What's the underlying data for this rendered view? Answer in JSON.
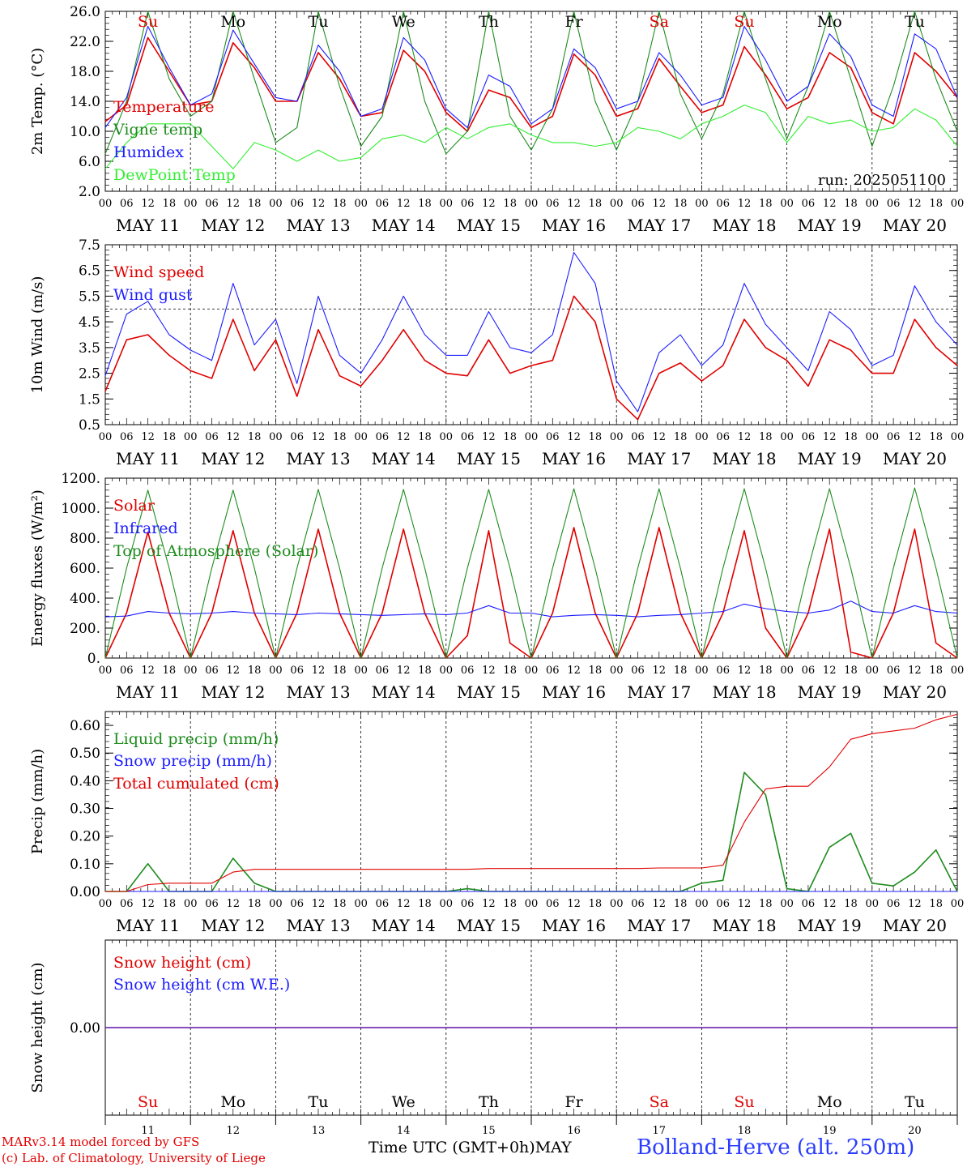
{
  "footer": {
    "model_line": "MARv3.14 model forced by GFS",
    "lab_line": "(c) Lab. of Climatology, University of Liege",
    "xlabel": "Time UTC (GMT+0h)",
    "month": "MAY",
    "station": "Bolland-Herve (alt. 250m)"
  },
  "run_label": "run: 2025051100",
  "days": [
    "MAY 11",
    "MAY 12",
    "MAY 13",
    "MAY 14",
    "MAY 15",
    "MAY 16",
    "MAY 17",
    "MAY 18",
    "MAY 19",
    "MAY 20"
  ],
  "weekdays": [
    {
      "label": "Su",
      "color": "#e00000"
    },
    {
      "label": "Mo",
      "color": "#000000"
    },
    {
      "label": "Tu",
      "color": "#000000"
    },
    {
      "label": "We",
      "color": "#000000"
    },
    {
      "label": "Th",
      "color": "#000000"
    },
    {
      "label": "Fr",
      "color": "#000000"
    },
    {
      "label": "Sa",
      "color": "#e00000"
    },
    {
      "label": "Su",
      "color": "#e00000"
    },
    {
      "label": "Mo",
      "color": "#000000"
    },
    {
      "label": "Tu",
      "color": "#000000"
    }
  ],
  "day_numbers": [
    "11",
    "12",
    "13",
    "14",
    "15",
    "16",
    "17",
    "18",
    "19",
    "20"
  ],
  "hour_ticks": [
    "00",
    "06",
    "12",
    "18"
  ],
  "colors": {
    "red": "#e00000",
    "green": "#1e8c1e",
    "blue": "#1c1cff",
    "lightgreen": "#33ee33"
  },
  "chart_data": [
    {
      "type": "line",
      "panel": "temperature",
      "ylabel": "2m Temp. (°C)",
      "ylim": [
        2,
        26
      ],
      "yticks": [
        "2.0",
        "6.0",
        "10.0",
        "14.0",
        "18.0",
        "22.0",
        "26.0"
      ],
      "x_unit": "hours since 2025-05-11 00 UTC",
      "x": [
        0,
        6,
        12,
        18,
        24,
        30,
        36,
        42,
        48,
        54,
        60,
        66,
        72,
        78,
        84,
        90,
        96,
        102,
        108,
        114,
        120,
        126,
        132,
        138,
        144,
        150,
        156,
        162,
        168,
        174,
        180,
        186,
        192,
        198,
        204,
        210,
        216,
        222,
        228,
        234,
        240
      ],
      "series": [
        {
          "name": "Temperature",
          "color": "#e00000",
          "values": [
            11.3,
            13.5,
            22.5,
            18.0,
            13.5,
            14.0,
            21.8,
            18.5,
            14.0,
            14.0,
            20.5,
            17.0,
            12.0,
            12.5,
            20.8,
            18.0,
            12.5,
            10.0,
            15.5,
            14.5,
            10.5,
            12.0,
            20.3,
            17.5,
            12.0,
            13.0,
            19.7,
            16.0,
            12.5,
            13.5,
            21.3,
            17.5,
            13.0,
            14.5,
            20.5,
            18.5,
            12.5,
            11.0,
            20.5,
            18.0,
            14.5
          ]
        },
        {
          "name": "Vigne temp",
          "color": "#1e8c1e",
          "values": [
            7.0,
            14.0,
            26.0,
            17.0,
            12.0,
            14.0,
            26.0,
            17.0,
            8.5,
            10.5,
            26.0,
            16.0,
            8.0,
            12.0,
            26.0,
            14.0,
            7.0,
            10.0,
            26.0,
            12.0,
            7.5,
            13.0,
            26.0,
            14.0,
            7.5,
            14.0,
            26.0,
            15.0,
            9.0,
            15.0,
            26.0,
            17.0,
            9.0,
            16.0,
            26.0,
            17.0,
            8.0,
            16.0,
            26.0,
            17.0,
            10.0
          ]
        },
        {
          "name": "Humidex",
          "color": "#1c1cff",
          "values": [
            10.5,
            14.5,
            24.0,
            18.5,
            13.5,
            15.0,
            23.5,
            19.0,
            14.5,
            14.0,
            21.5,
            18.0,
            12.0,
            13.0,
            22.5,
            19.5,
            13.0,
            10.5,
            17.5,
            16.0,
            11.0,
            13.0,
            21.0,
            18.5,
            13.0,
            14.0,
            20.5,
            17.5,
            13.5,
            14.5,
            24.0,
            19.5,
            14.0,
            16.0,
            23.0,
            20.0,
            13.5,
            12.0,
            23.0,
            21.0,
            14.5
          ]
        },
        {
          "name": "DewPoint Temp",
          "color": "#33ee33",
          "values": [
            5.0,
            8.5,
            11.0,
            11.0,
            11.0,
            8.0,
            5.0,
            8.5,
            7.5,
            6.0,
            7.5,
            6.0,
            6.5,
            9.0,
            9.5,
            8.5,
            10.5,
            9.0,
            10.5,
            11.0,
            9.5,
            8.5,
            8.5,
            8.0,
            8.5,
            10.5,
            10.0,
            9.0,
            11.0,
            12.0,
            13.5,
            12.5,
            8.5,
            12.0,
            11.0,
            11.5,
            10.0,
            10.5,
            13.0,
            11.5,
            8.0
          ]
        }
      ]
    },
    {
      "type": "line",
      "panel": "wind",
      "ylabel": "10m Wind (m/s)",
      "ylim": [
        0.5,
        7.5
      ],
      "yticks": [
        "0.5",
        "1.5",
        "2.5",
        "3.5",
        "4.5",
        "5.5",
        "6.5",
        "7.5"
      ],
      "reference_line": 5.0,
      "x": [
        0,
        6,
        12,
        18,
        24,
        30,
        36,
        42,
        48,
        54,
        60,
        66,
        72,
        78,
        84,
        90,
        96,
        102,
        108,
        114,
        120,
        126,
        132,
        138,
        144,
        150,
        156,
        162,
        168,
        174,
        180,
        186,
        192,
        198,
        204,
        210,
        216,
        222,
        228,
        234,
        240
      ],
      "series": [
        {
          "name": "Wind speed",
          "color": "#e00000",
          "values": [
            1.8,
            3.8,
            4.0,
            3.2,
            2.6,
            2.3,
            4.6,
            2.6,
            3.8,
            1.6,
            4.2,
            2.4,
            2.0,
            3.0,
            4.2,
            3.0,
            2.5,
            2.4,
            3.8,
            2.5,
            2.8,
            3.0,
            5.5,
            4.5,
            1.5,
            0.7,
            2.5,
            2.9,
            2.2,
            2.8,
            4.6,
            3.5,
            3.0,
            2.0,
            3.8,
            3.4,
            2.5,
            2.5,
            4.6,
            3.5,
            2.8
          ]
        },
        {
          "name": "Wind gust",
          "color": "#1c1cff",
          "values": [
            2.4,
            4.8,
            5.3,
            4.0,
            3.4,
            3.0,
            6.0,
            3.6,
            4.6,
            2.1,
            5.5,
            3.2,
            2.5,
            3.8,
            5.5,
            4.0,
            3.2,
            3.2,
            4.9,
            3.5,
            3.3,
            4.0,
            7.2,
            6.0,
            2.2,
            1.0,
            3.3,
            4.0,
            2.8,
            3.6,
            6.0,
            4.4,
            3.5,
            2.6,
            4.9,
            4.2,
            2.8,
            3.2,
            5.9,
            4.5,
            3.6
          ]
        }
      ]
    },
    {
      "type": "line",
      "panel": "energy",
      "ylabel": "Energy fluxes (W/m²)",
      "ylim": [
        0,
        1200
      ],
      "yticks": [
        "0.",
        "200.",
        "400.",
        "600.",
        "800.",
        "1000.",
        "1200."
      ],
      "x": [
        0,
        6,
        12,
        18,
        24,
        30,
        36,
        42,
        48,
        54,
        60,
        66,
        72,
        78,
        84,
        90,
        96,
        102,
        108,
        114,
        120,
        126,
        132,
        138,
        144,
        150,
        156,
        162,
        168,
        174,
        180,
        186,
        192,
        198,
        204,
        210,
        216,
        222,
        228,
        234,
        240
      ],
      "series": [
        {
          "name": "Solar",
          "color": "#e00000",
          "values": [
            0,
            300,
            840,
            300,
            0,
            300,
            850,
            300,
            0,
            300,
            860,
            300,
            0,
            300,
            860,
            300,
            0,
            150,
            850,
            100,
            0,
            300,
            870,
            300,
            0,
            300,
            870,
            300,
            0,
            300,
            850,
            200,
            0,
            300,
            860,
            40,
            0,
            300,
            860,
            100,
            0
          ]
        },
        {
          "name": "Infrared",
          "color": "#1c1cff",
          "values": [
            275,
            280,
            310,
            300,
            295,
            300,
            310,
            300,
            295,
            290,
            300,
            295,
            290,
            285,
            290,
            295,
            290,
            300,
            350,
            300,
            300,
            275,
            285,
            290,
            285,
            275,
            285,
            290,
            300,
            310,
            360,
            330,
            310,
            300,
            320,
            380,
            310,
            300,
            350,
            310,
            300
          ]
        },
        {
          "name": "Top of Atmosphere (Solar)",
          "color": "#1e8c1e",
          "values": [
            0,
            600,
            1120,
            600,
            0,
            600,
            1120,
            600,
            0,
            600,
            1125,
            600,
            0,
            600,
            1125,
            600,
            0,
            600,
            1125,
            600,
            0,
            600,
            1130,
            600,
            0,
            600,
            1130,
            600,
            0,
            600,
            1130,
            600,
            0,
            600,
            1130,
            600,
            0,
            600,
            1135,
            600,
            0
          ]
        }
      ]
    },
    {
      "type": "line",
      "panel": "precip",
      "ylabel": "Precip (mm/h)",
      "ylim": [
        0,
        0.65
      ],
      "yticks": [
        "0.00",
        "0.10",
        "0.20",
        "0.30",
        "0.40",
        "0.50",
        "0.60"
      ],
      "x": [
        0,
        6,
        12,
        18,
        24,
        30,
        36,
        42,
        48,
        54,
        60,
        66,
        72,
        78,
        84,
        90,
        96,
        102,
        108,
        114,
        120,
        126,
        132,
        138,
        144,
        150,
        156,
        162,
        168,
        174,
        180,
        186,
        192,
        198,
        204,
        210,
        216,
        222,
        228,
        234,
        240
      ],
      "series": [
        {
          "name": "Liquid precip (mm/h)",
          "color": "#1e8c1e",
          "values": [
            0,
            0,
            0.1,
            0,
            0,
            0,
            0.12,
            0.03,
            0,
            0,
            0,
            0,
            0,
            0,
            0,
            0,
            0,
            0.01,
            0,
            0,
            0,
            0,
            0,
            0,
            0,
            0,
            0,
            0,
            0.03,
            0.04,
            0.43,
            0.35,
            0.01,
            0,
            0.16,
            0.21,
            0.03,
            0.02,
            0.07,
            0.15,
            0
          ]
        },
        {
          "name": "Snow precip (mm/h)",
          "color": "#1c1cff",
          "values": [
            0,
            0,
            0,
            0,
            0,
            0,
            0,
            0,
            0,
            0,
            0,
            0,
            0,
            0,
            0,
            0,
            0,
            0,
            0,
            0,
            0,
            0,
            0,
            0,
            0,
            0,
            0,
            0,
            0,
            0,
            0,
            0,
            0,
            0,
            0,
            0,
            0,
            0,
            0,
            0,
            0
          ]
        },
        {
          "name": "Total cumulated (cm)",
          "color": "#e00000",
          "values": [
            0,
            0,
            0.025,
            0.03,
            0.03,
            0.03,
            0.07,
            0.08,
            0.08,
            0.08,
            0.08,
            0.08,
            0.08,
            0.08,
            0.08,
            0.08,
            0.08,
            0.08,
            0.083,
            0.083,
            0.083,
            0.083,
            0.083,
            0.083,
            0.083,
            0.083,
            0.085,
            0.085,
            0.085,
            0.095,
            0.25,
            0.37,
            0.38,
            0.38,
            0.45,
            0.55,
            0.57,
            0.58,
            0.59,
            0.62,
            0.64
          ]
        }
      ]
    },
    {
      "type": "line",
      "panel": "snow",
      "ylabel": "Snow height (cm)",
      "ylim": [
        -1,
        1
      ],
      "yticks": [
        "0.00"
      ],
      "x": [
        0,
        240
      ],
      "series": [
        {
          "name": "Snow height (cm)",
          "color": "#e00000",
          "values": [
            0,
            0
          ]
        },
        {
          "name": "Snow height (cm W.E.)",
          "color": "#1c1cff",
          "values": [
            0,
            0
          ]
        }
      ]
    }
  ]
}
